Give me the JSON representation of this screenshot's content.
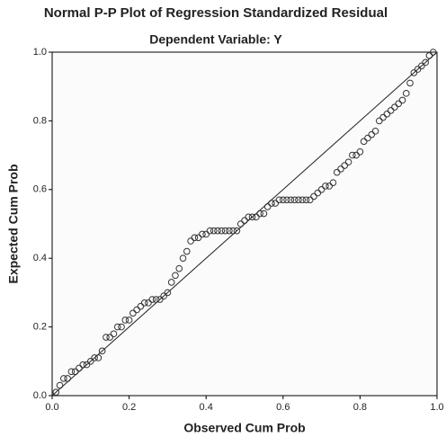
{
  "chart_data": {
    "type": "scatter",
    "title": "Normal P-P Plot of Regression Standardized Residual",
    "subtitle": "Dependent Variable: Y",
    "x_label": "Observed Cum Prob",
    "y_label": "Expected Cum Prob",
    "xlim": [
      0,
      1
    ],
    "ylim": [
      0,
      1
    ],
    "xticks": [
      {
        "value": 0,
        "label": "0.0"
      },
      {
        "value": 0.2,
        "label": "0.2"
      },
      {
        "value": 0.4,
        "label": "0.4"
      },
      {
        "value": 0.6,
        "label": "0.6"
      },
      {
        "value": 0.8,
        "label": "0.8"
      },
      {
        "value": 1,
        "label": "1.0"
      }
    ],
    "yticks": [
      {
        "value": 0,
        "label": "0.0"
      },
      {
        "value": 0.2,
        "label": "0.2"
      },
      {
        "value": 0.4,
        "label": "0.4"
      },
      {
        "value": 0.6,
        "label": "0.6"
      },
      {
        "value": 0.8,
        "label": "0.8"
      },
      {
        "value": 1,
        "label": "1.0"
      }
    ],
    "color": "#333333",
    "x": [
      0.01,
      0.02,
      0.03,
      0.04,
      0.05,
      0.06,
      0.07,
      0.08,
      0.09,
      0.1,
      0.11,
      0.12,
      0.13,
      0.14,
      0.15,
      0.16,
      0.17,
      0.18,
      0.19,
      0.2,
      0.21,
      0.22,
      0.23,
      0.24,
      0.25,
      0.26,
      0.27,
      0.28,
      0.29,
      0.3,
      0.31,
      0.32,
      0.33,
      0.34,
      0.35,
      0.36,
      0.37,
      0.38,
      0.39,
      0.4,
      0.41,
      0.42,
      0.43,
      0.44,
      0.45,
      0.46,
      0.47,
      0.48,
      0.49,
      0.5,
      0.51,
      0.52,
      0.53,
      0.54,
      0.55,
      0.56,
      0.57,
      0.58,
      0.59,
      0.6,
      0.61,
      0.62,
      0.63,
      0.64,
      0.65,
      0.66,
      0.67,
      0.68,
      0.69,
      0.7,
      0.71,
      0.72,
      0.73,
      0.74,
      0.75,
      0.76,
      0.77,
      0.78,
      0.79,
      0.8,
      0.81,
      0.82,
      0.83,
      0.84,
      0.85,
      0.86,
      0.87,
      0.88,
      0.89,
      0.9,
      0.91,
      0.92,
      0.93,
      0.94,
      0.95,
      0.96,
      0.97,
      0.98,
      0.99
    ],
    "values": [
      0.01,
      0.03,
      0.05,
      0.05,
      0.07,
      0.07,
      0.08,
      0.09,
      0.09,
      0.1,
      0.11,
      0.11,
      0.13,
      0.17,
      0.17,
      0.18,
      0.2,
      0.2,
      0.22,
      0.22,
      0.24,
      0.25,
      0.26,
      0.27,
      0.27,
      0.28,
      0.28,
      0.28,
      0.29,
      0.3,
      0.33,
      0.35,
      0.37,
      0.4,
      0.42,
      0.45,
      0.46,
      0.46,
      0.47,
      0.47,
      0.48,
      0.48,
      0.48,
      0.48,
      0.48,
      0.48,
      0.48,
      0.48,
      0.5,
      0.51,
      0.52,
      0.52,
      0.52,
      0.53,
      0.53,
      0.55,
      0.56,
      0.56,
      0.57,
      0.57,
      0.57,
      0.57,
      0.57,
      0.57,
      0.57,
      0.57,
      0.57,
      0.58,
      0.59,
      0.6,
      0.61,
      0.61,
      0.62,
      0.65,
      0.66,
      0.67,
      0.68,
      0.7,
      0.7,
      0.71,
      0.74,
      0.75,
      0.76,
      0.77,
      0.8,
      0.81,
      0.82,
      0.83,
      0.84,
      0.85,
      0.86,
      0.88,
      0.91,
      0.94,
      0.95,
      0.96,
      0.97,
      0.99,
      1.0
    ]
  }
}
